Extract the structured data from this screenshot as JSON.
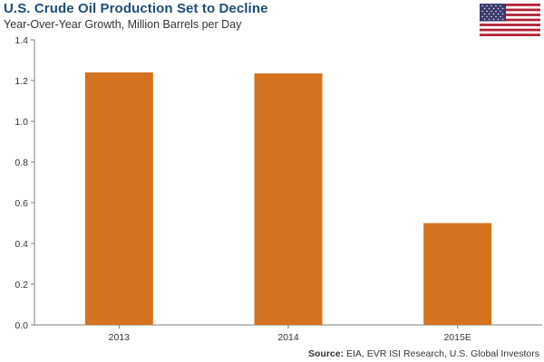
{
  "header": {
    "title": "U.S. Crude Oil Production Set to Decline",
    "subtitle": "Year-Over-Year Growth, Million Barrels per Day"
  },
  "flag": {
    "icon": "us-flag-icon",
    "colors": {
      "red": "#b22234",
      "white": "#ffffff",
      "blue": "#3c3b6e"
    }
  },
  "footer": {
    "source_label": "Source:",
    "source_text": " EIA, EVR ISI Research, U.S. Global Investors"
  },
  "colors": {
    "bar": "#d4721f",
    "axis": "#7f7f7f",
    "title": "#1f4e79"
  },
  "chart_data": {
    "type": "bar",
    "title": "U.S. Crude Oil Production Set to Decline",
    "subtitle": "Year-Over-Year Growth, Million Barrels per Day",
    "categories": [
      "2013",
      "2014",
      "2015E"
    ],
    "values": [
      1.24,
      1.235,
      0.5
    ],
    "ylim": [
      0,
      1.4
    ],
    "yticks": [
      "0.0",
      "0.2",
      "0.4",
      "0.6",
      "0.8",
      "1.0",
      "1.2",
      "1.4"
    ],
    "xlabel": "",
    "ylabel": "",
    "grid": false,
    "legend": "none"
  }
}
